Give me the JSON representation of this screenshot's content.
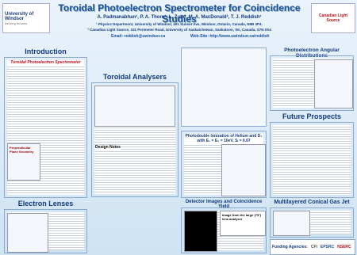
{
  "header": {
    "title": "Toroidal Photoelectron Spectrometer for Coincidence Studies",
    "authors": "A. Padmanabhan¹, P. A. Thorn¹, L. Zuin², M. A. MacDonald², T. J. Reddish¹",
    "affiliations": [
      "¹ Physics Department, University of Windsor, 401 Sunset Ave, Windsor, Ontario, Canada, N9B 3P4.",
      "² Canadian Light Source, 101 Perimeter Road, University of Saskatchewan, Saskatoon, SK, Canada, S7N 0X4"
    ],
    "email": "Email: reddish@uwindsor.ca",
    "website": "Web-Site: http://www.uwindsor.ca/reddish"
  },
  "logos": {
    "left": "University of Windsor",
    "left_tagline": "thinking forward",
    "right": "Canadian Light Source"
  },
  "sections": [
    {
      "title": "Introduction",
      "subtitle": "Toroidal Photoelectron Spectrometer",
      "figure": "Perpendicular Plane Geometry"
    },
    {
      "title": "Toroidal Analysers",
      "notes": "Design Notes"
    },
    {
      "title": "Photodouble Ionization of Helium and D₂ with E₁ = E₂ = 10eV, Sₗ = 0.67"
    },
    {
      "title": "Photoelectron Angular Distributions"
    },
    {
      "title": "Future Prospects"
    },
    {
      "title": "Electron Lenses"
    },
    {
      "title": "Detector Images and Coincidence Yield",
      "figure": "Image from the large (75°) lens analyser"
    },
    {
      "title": "Multilayered Conical Gas Jet"
    }
  ],
  "funding": {
    "label": "Funding Agencies:",
    "logos": [
      "CFI",
      "EPSRC",
      "NSERC"
    ]
  }
}
